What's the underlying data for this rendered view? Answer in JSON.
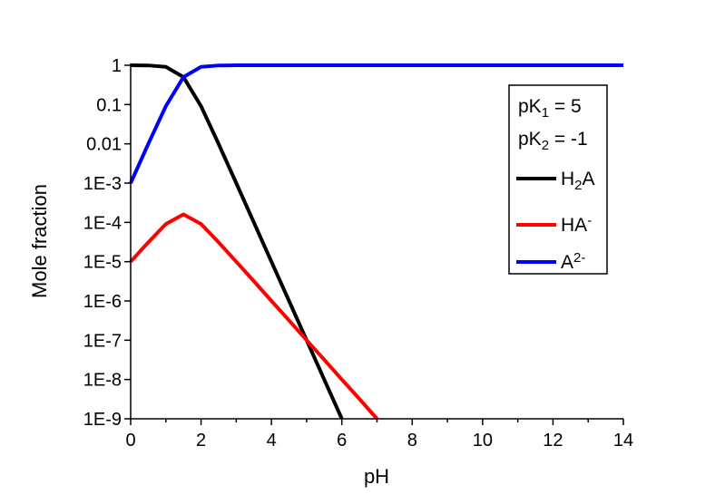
{
  "chart_data": {
    "type": "line",
    "title": "",
    "xlabel": "pH",
    "ylabel": "Mole fraction",
    "xlim": [
      0,
      14
    ],
    "ylim": [
      1e-09,
      1
    ],
    "yscale": "log",
    "grid": false,
    "legend_position": "top-right",
    "x_ticks": [
      0,
      2,
      4,
      6,
      8,
      10,
      12,
      14
    ],
    "x_tick_labels": [
      "0",
      "2",
      "4",
      "6",
      "8",
      "10",
      "12",
      "14"
    ],
    "y_ticks": [
      1,
      0.1,
      0.01,
      0.001,
      0.0001,
      1e-05,
      1e-06,
      1e-07,
      1e-08,
      1e-09
    ],
    "y_tick_labels": [
      "1",
      "0.1",
      "0.01",
      "1E-3",
      "1E-4",
      "1E-5",
      "1E-6",
      "1E-7",
      "1E-8",
      "1E-9"
    ],
    "annotations": {
      "pk1": {
        "prefix": "pK",
        "sub": "1",
        "suffix": " = 5"
      },
      "pk2": {
        "prefix": "pK",
        "sub": "2",
        "suffix": " = -1"
      }
    },
    "series": [
      {
        "name": "H2A",
        "legend": {
          "base": "H",
          "sub": "2",
          "rest": "A"
        },
        "color": "#000000",
        "x": [
          0,
          0.5,
          1,
          1.5,
          2,
          2.5,
          3,
          3.5,
          4,
          4.5,
          5,
          5.5,
          6
        ],
        "values": [
          0.999,
          0.99,
          0.91,
          0.5,
          0.091,
          0.0099,
          0.001,
          0.0001,
          1e-05,
          1e-06,
          1e-07,
          1e-08,
          1e-09
        ]
      },
      {
        "name": "HA-",
        "legend": {
          "base": "HA",
          "sup": "-"
        },
        "color": "#ff0000",
        "x": [
          0,
          0.5,
          1,
          1.5,
          2,
          2.5,
          3,
          3.5,
          4,
          4.5,
          5,
          5.5,
          6,
          6.5,
          7
        ],
        "values": [
          1e-05,
          3.1e-05,
          9.1e-05,
          0.00016,
          9.1e-05,
          3.1e-05,
          1e-05,
          3.2e-06,
          1e-06,
          3.2e-07,
          1e-07,
          3.2e-08,
          1e-08,
          3.2e-09,
          1e-09
        ]
      },
      {
        "name": "A2-",
        "legend": {
          "base": "A",
          "sup": "2-"
        },
        "color": "#0000ff",
        "x": [
          0,
          0.5,
          1,
          1.5,
          2,
          2.5,
          3,
          4,
          6,
          8,
          10,
          12,
          14
        ],
        "values": [
          0.001,
          0.0099,
          0.091,
          0.5,
          0.91,
          0.99,
          0.999,
          1,
          1,
          1,
          1,
          1,
          1
        ]
      }
    ]
  }
}
